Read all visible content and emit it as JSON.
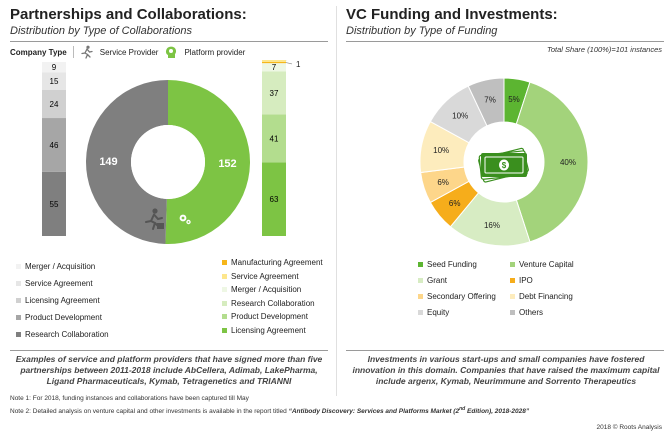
{
  "left": {
    "title": "Partnerships and Collaborations:",
    "subtitle": "Distribution by Type of Collaborations",
    "company_type_label": "Company Type",
    "legend_service": "Service Provider",
    "legend_platform": "Platform provider",
    "caption": "Examples of service and platform providers that have signed more than five partnerships between 2011-2018 include AbCellera, Adimab, LakePharma, Ligand Pharmaceuticals, Kymab, Tetragenetics and TRIANNI"
  },
  "right": {
    "title": "VC Funding and Investments:",
    "subtitle": "Distribution by Type of Funding",
    "total_note": "Total Share (100%)=101 instances",
    "caption": "Investments in various start-ups and small companies have fostered innovation in this domain. Companies that have raised the maximum capital include argenx, Kymab, Neurimmune and Sorrento Therapeutics"
  },
  "notes": {
    "note1": "Note 1: For 2018, funding instances and collaborations have been captured till May",
    "note2_prefix": "Note 2: Detailed analysis on venture capital and other investments is available in the report titled ",
    "note2_report_a": "“Antibody Discovery: Services and Platforms Market (2",
    "note2_sup": "nd",
    "note2_report_b": " Edition), 2018-2028”",
    "copyright": "2018 © Roots Analysis"
  },
  "icons": [
    "person-running-icon",
    "head-gears-icon",
    "money-icon"
  ],
  "chart_data": [
    {
      "type": "pie",
      "variant": "donut",
      "labels": [
        "Service Provider",
        "Platform provider"
      ],
      "values": [
        149,
        152
      ],
      "colors": [
        "#7f7f7f",
        "#7dc444"
      ]
    },
    {
      "type": "bar",
      "variant": "stacked",
      "series_group": "Service Provider",
      "categories": [
        "Research Collaboration",
        "Product Development",
        "Licensing Agreement",
        "Service Agreement",
        "Merger / Acquisition"
      ],
      "values": [
        55,
        46,
        24,
        15,
        9
      ],
      "colors": [
        "#7f7f7f",
        "#a6a6a6",
        "#d0d0d0",
        "#e6e6e6",
        "#f2f2f2"
      ],
      "legend": [
        "Merger / Acquisition",
        "Service Agreement",
        "Licensing Agreement",
        "Product Development",
        "Research Collaboration"
      ]
    },
    {
      "type": "bar",
      "variant": "stacked",
      "series_group": "Platform provider",
      "categories": [
        "Licensing Agreement",
        "Product Development",
        "Research Collaboration",
        "Merger / Acquisition",
        "Manufacturing Agreement",
        "Service Agreement"
      ],
      "values": [
        63,
        41,
        37,
        7,
        1,
        3
      ],
      "colors": [
        "#7dc444",
        "#b3dd8e",
        "#d6ecbf",
        "#eef7e4",
        "#f6b61a",
        "#fde68c"
      ],
      "legend": [
        "Manufacturing Agreement",
        "Service Agreement",
        "Merger / Acquisition",
        "Research Collaboration",
        "Product Development",
        "Licensing Agreement"
      ]
    },
    {
      "type": "pie",
      "variant": "donut",
      "labels": [
        "Seed Funding",
        "Venture Capital",
        "Grant",
        "IPO",
        "Secondary Offering",
        "Debt Financing",
        "Equity",
        "Others"
      ],
      "values": [
        5,
        40,
        16,
        6,
        6,
        10,
        10,
        7
      ],
      "value_labels": [
        "5%",
        "40%",
        "16%",
        "6%",
        "6%",
        "10%",
        "10%",
        "7%"
      ],
      "colors": [
        "#5cb531",
        "#a3d37b",
        "#d7ecc3",
        "#f6ad1b",
        "#fdd68a",
        "#fdecbd",
        "#d9d9d9",
        "#bfbfbf"
      ]
    }
  ]
}
